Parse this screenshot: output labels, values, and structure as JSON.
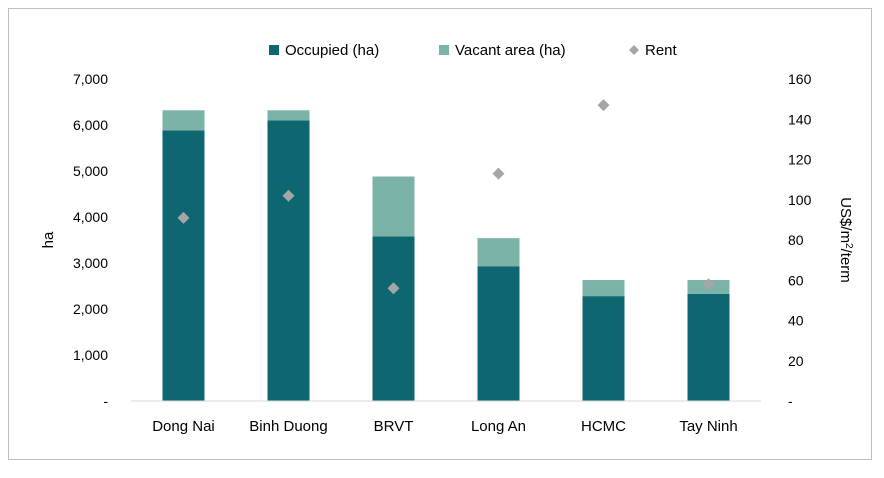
{
  "chart_data": {
    "type": "bar",
    "stacked": true,
    "categories": [
      "Dong Nai",
      "Binh Duong",
      "BRVT",
      "Long An",
      "HCMC",
      "Tay Ninh"
    ],
    "series": [
      {
        "name": "Occupied (ha)",
        "kind": "bar",
        "axis": "left",
        "color": "#0e6670",
        "values": [
          5880,
          6100,
          3580,
          2930,
          2280,
          2330
        ]
      },
      {
        "name": "Vacant area (ha)",
        "kind": "bar",
        "axis": "left",
        "color": "#7bb3a9",
        "values": [
          440,
          220,
          1300,
          610,
          350,
          300
        ]
      },
      {
        "name": "Rent",
        "kind": "marker",
        "axis": "right",
        "color": "#a6a6a6",
        "values": [
          91,
          102,
          56,
          113,
          147,
          58
        ]
      }
    ],
    "ylabel": "ha",
    "y2label": "US$/m²/term",
    "ylim": [
      0,
      7000
    ],
    "y2lim": [
      0,
      160
    ],
    "yticks": [
      "-",
      "1,000",
      "2,000",
      "3,000",
      "4,000",
      "5,000",
      "6,000",
      "7,000"
    ],
    "y2ticks": [
      "-",
      "20",
      "40",
      "60",
      "80",
      "100",
      "120",
      "140",
      "160"
    ],
    "grid": false,
    "legend": "top-center"
  }
}
